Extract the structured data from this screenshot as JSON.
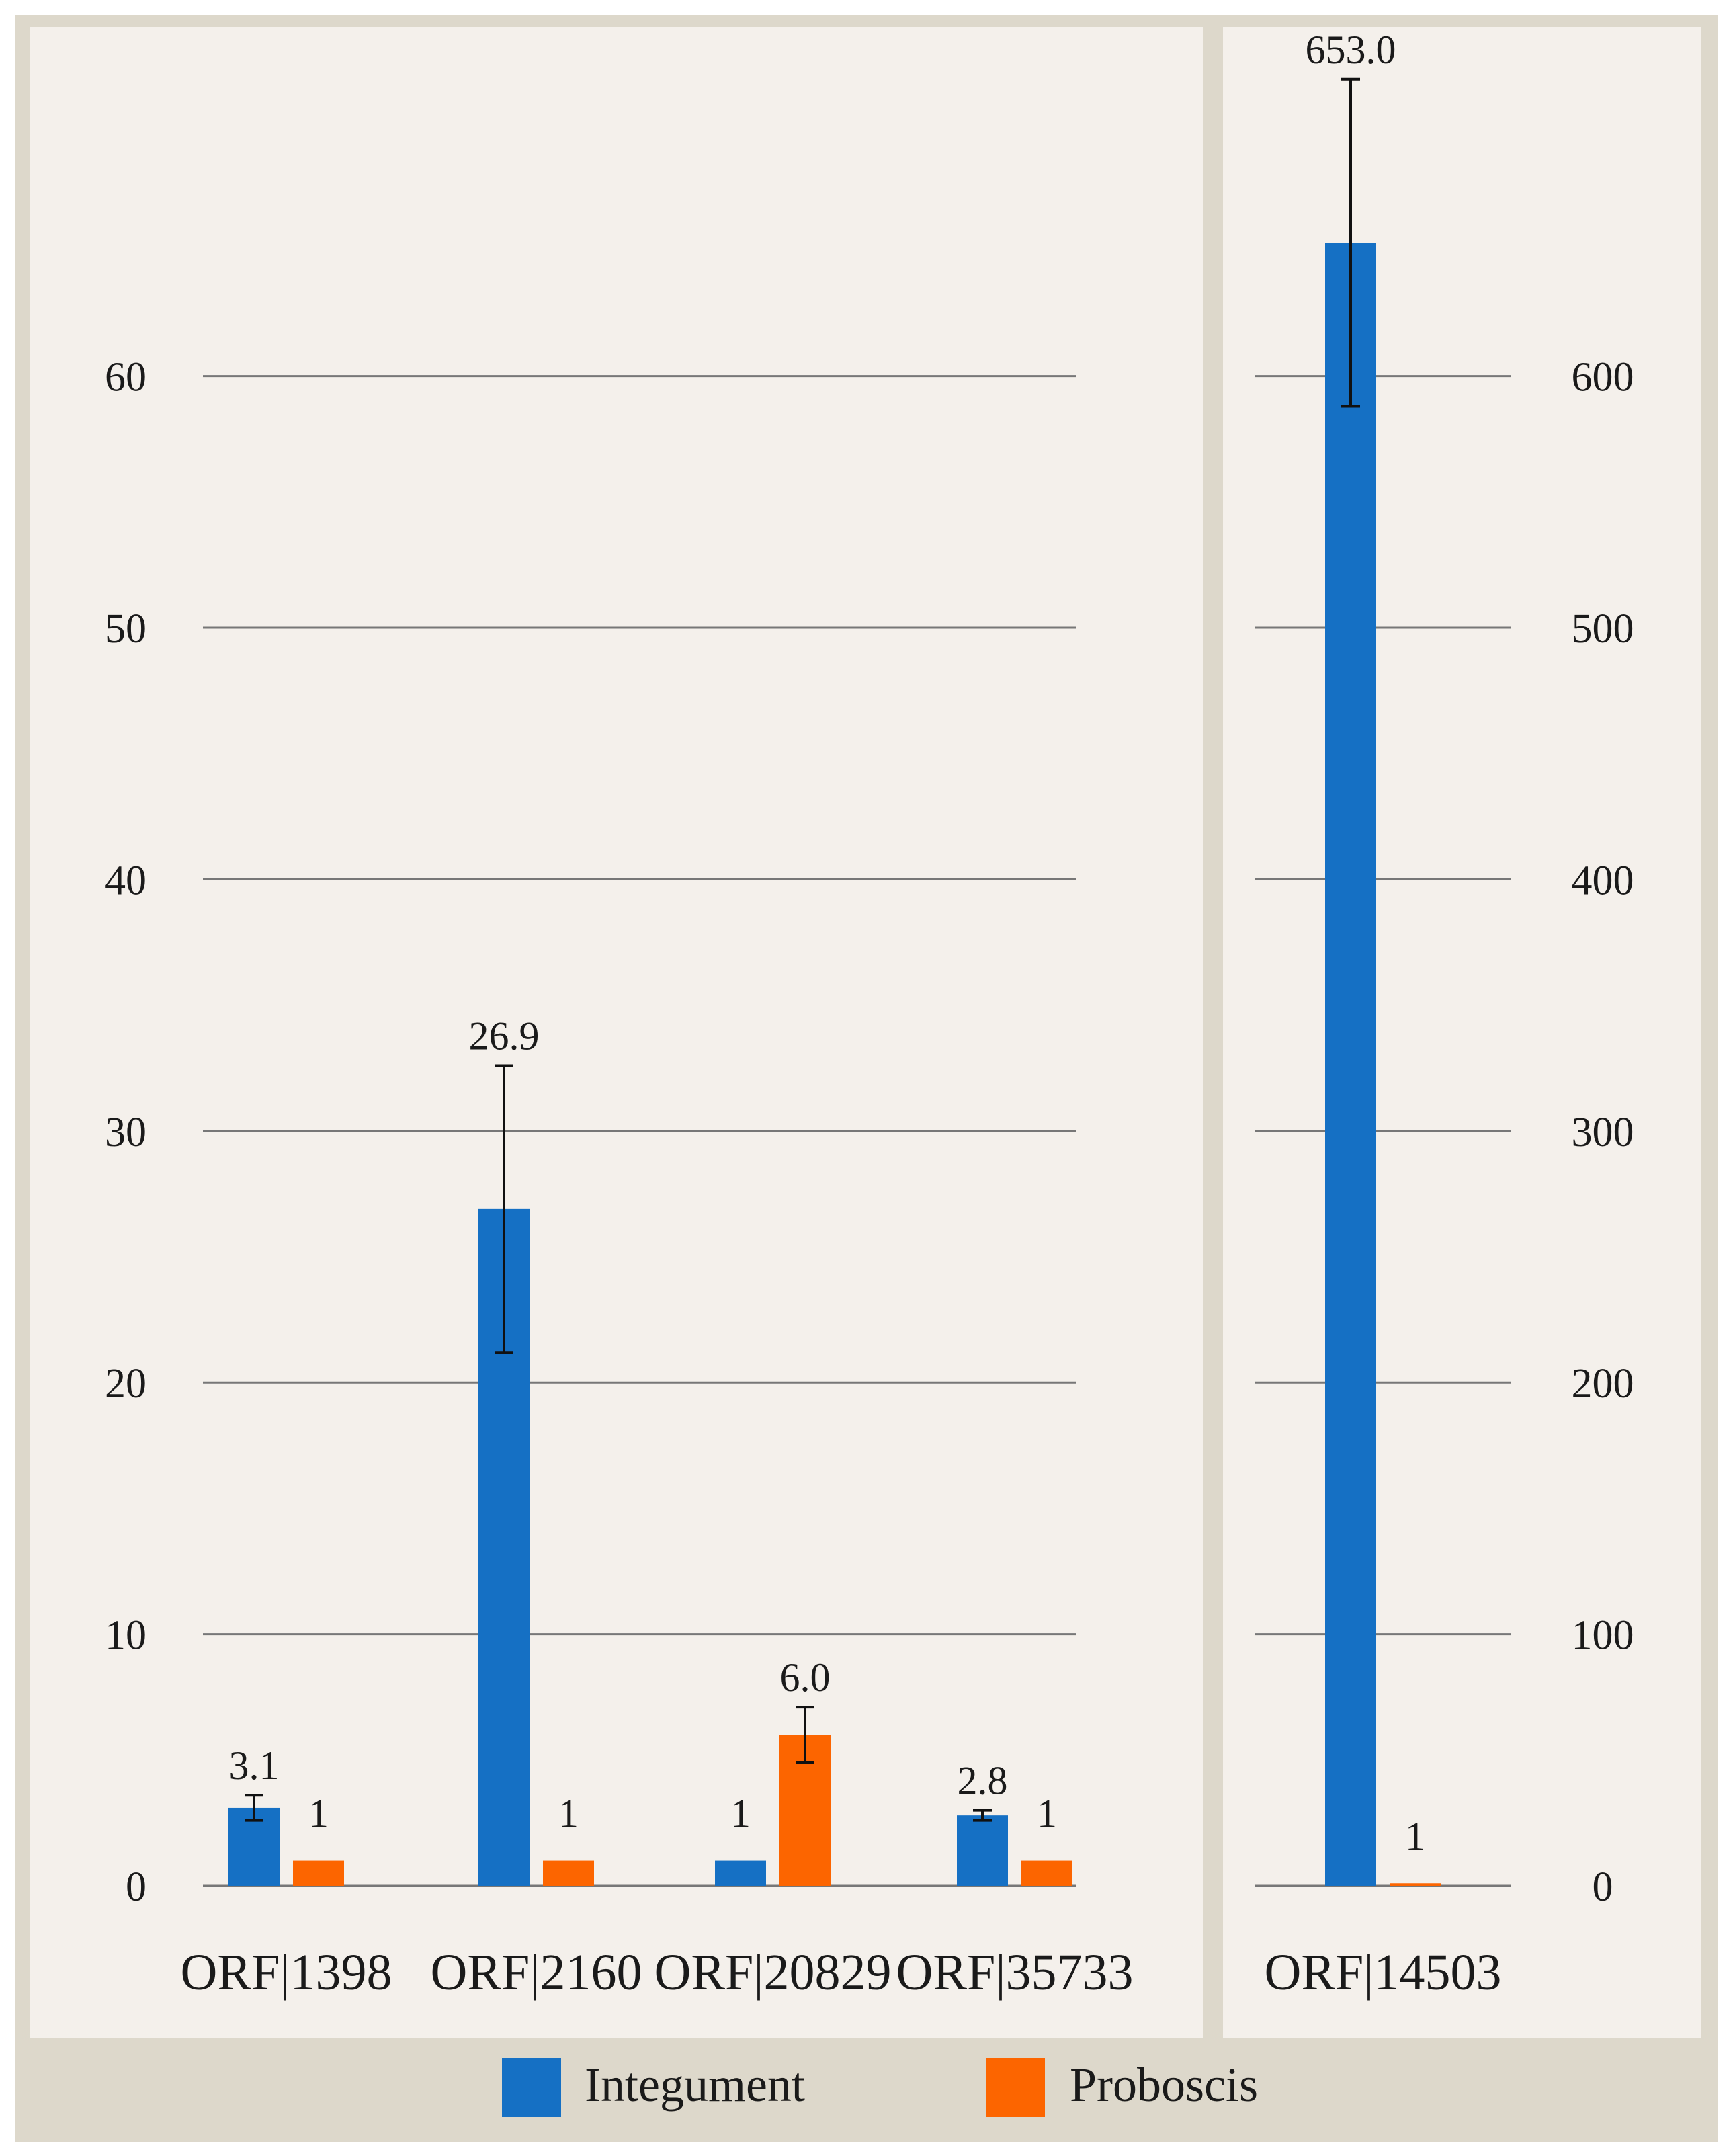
{
  "chart_data": [
    {
      "type": "bar",
      "title": "",
      "xlabel": "",
      "ylabel": "",
      "categories": [
        "ORF|1398",
        "ORF|2160",
        "ORF|20829",
        "ORF|35733"
      ],
      "series": [
        {
          "name": "Integument",
          "values": [
            3.1,
            26.9,
            1,
            2.8
          ],
          "errors": [
            0.5,
            5.7,
            0,
            0.2
          ],
          "labels": [
            "3.1",
            "26.9",
            "1",
            "2.8"
          ]
        },
        {
          "name": "Proboscis",
          "values": [
            1,
            1,
            6.0,
            1
          ],
          "errors": [
            0,
            0,
            1.1,
            0
          ],
          "labels": [
            "1",
            "1",
            "6.0",
            "1"
          ]
        }
      ],
      "ylim": [
        0,
        70
      ],
      "yticks": [
        0,
        10,
        20,
        30,
        40,
        50,
        60
      ],
      "ytick_labels": [
        "0",
        "10",
        "20",
        "30",
        "40",
        "50",
        "60"
      ],
      "y_axis_side": "left",
      "grid": true
    },
    {
      "type": "bar",
      "title": "",
      "xlabel": "",
      "ylabel": "",
      "categories": [
        "ORF|14503"
      ],
      "series": [
        {
          "name": "Integument",
          "values": [
            653.0
          ],
          "errors": [
            65
          ],
          "labels": [
            "653.0"
          ]
        },
        {
          "name": "Proboscis",
          "values": [
            1
          ],
          "errors": [
            0
          ],
          "labels": [
            "1"
          ]
        }
      ],
      "ylim": [
        0,
        700
      ],
      "yticks": [
        0,
        100,
        200,
        300,
        400,
        500,
        600
      ],
      "ytick_labels": [
        "0",
        "100",
        "200",
        "300",
        "400",
        "500",
        "600"
      ],
      "y_axis_side": "right",
      "grid": true
    }
  ],
  "legend": {
    "position": "bottom",
    "items": [
      {
        "label": "Integument",
        "color": "#1570c4"
      },
      {
        "label": "Proboscis",
        "color": "#fc6500"
      }
    ]
  },
  "colors": {
    "outer_frame": "#ddd8cb",
    "panel_background": "#f4f0eb",
    "gridline": "#777777",
    "text": "#1a1a1a",
    "integument": "#1570c4",
    "proboscis": "#fc6500"
  }
}
